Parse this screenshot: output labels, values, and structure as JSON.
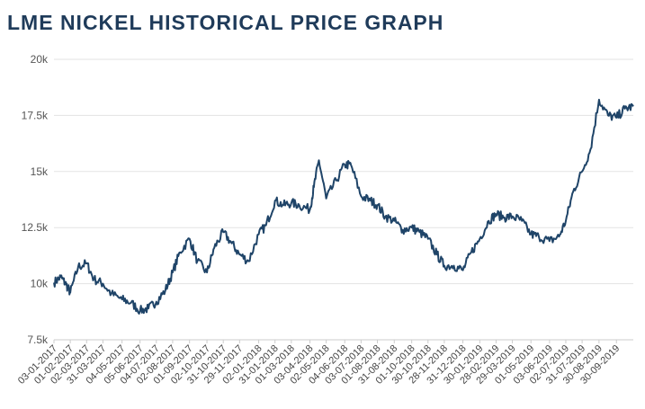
{
  "chart_data": {
    "type": "line",
    "title": "LME NICKEL HISTORICAL PRICE GRAPH",
    "xlabel": "",
    "ylabel": "",
    "ylim": [
      7500,
      20000
    ],
    "xlim": [
      "03-01-2017",
      "30-10-2019"
    ],
    "grid": true,
    "line_color": "#1f4468",
    "y_ticks": [
      {
        "value": 7500,
        "label": "7.5k"
      },
      {
        "value": 10000,
        "label": "10k"
      },
      {
        "value": 12500,
        "label": "12.5k"
      },
      {
        "value": 15000,
        "label": "15k"
      },
      {
        "value": 17500,
        "label": "17.5k"
      },
      {
        "value": 20000,
        "label": "20k"
      }
    ],
    "x_tick_labels": [
      "03-01-2017",
      "01-02-2017",
      "02-03-2017",
      "31-03-2017",
      "04-05-2017",
      "05-06-2017",
      "04-07-2017",
      "02-08-2017",
      "01-09-2017",
      "02-10-2017",
      "31-10-2017",
      "29-11-2017",
      "02-01-2018",
      "31-01-2018",
      "01-03-2018",
      "03-04-2018",
      "02-05-2018",
      "04-06-2018",
      "03-07-2018",
      "01-08-2018",
      "31-08-2018",
      "01-10-2018",
      "30-10-2018",
      "28-11-2018",
      "31-12-2018",
      "30-01-2019",
      "28-02-2019",
      "29-03-2019",
      "01-05-2019",
      "03-06-2019",
      "02-07-2019",
      "31-07-2019",
      "30-08-2019",
      "30-09-2019"
    ],
    "series": [
      {
        "name": "",
        "points": [
          [
            "03-01-2017",
            10050
          ],
          [
            "15-01-2017",
            10300
          ],
          [
            "25-01-2017",
            9950
          ],
          [
            "01-02-2017",
            9600
          ],
          [
            "15-02-2017",
            10750
          ],
          [
            "02-03-2017",
            10900
          ],
          [
            "15-03-2017",
            10200
          ],
          [
            "31-03-2017",
            10000
          ],
          [
            "15-04-2017",
            9550
          ],
          [
            "04-05-2017",
            9300
          ],
          [
            "20-05-2017",
            9150
          ],
          [
            "05-06-2017",
            8800
          ],
          [
            "20-06-2017",
            8900
          ],
          [
            "04-07-2017",
            9200
          ],
          [
            "20-07-2017",
            9700
          ],
          [
            "02-08-2017",
            10500
          ],
          [
            "15-08-2017",
            11400
          ],
          [
            "01-09-2017",
            12000
          ],
          [
            "15-09-2017",
            11000
          ],
          [
            "02-10-2017",
            10500
          ],
          [
            "15-10-2017",
            11600
          ],
          [
            "31-10-2017",
            12300
          ],
          [
            "15-11-2017",
            11800
          ],
          [
            "29-11-2017",
            11300
          ],
          [
            "15-12-2017",
            11000
          ],
          [
            "02-01-2018",
            12200
          ],
          [
            "15-01-2018",
            12600
          ],
          [
            "31-01-2018",
            13700
          ],
          [
            "15-02-2018",
            13500
          ],
          [
            "01-03-2018",
            13600
          ],
          [
            "15-03-2018",
            13500
          ],
          [
            "03-04-2018",
            13300
          ],
          [
            "10-04-2018",
            14300
          ],
          [
            "19-04-2018",
            15500
          ],
          [
            "02-05-2018",
            13800
          ],
          [
            "20-05-2018",
            14600
          ],
          [
            "04-06-2018",
            15300
          ],
          [
            "15-06-2018",
            15300
          ],
          [
            "03-07-2018",
            13900
          ],
          [
            "20-07-2018",
            13700
          ],
          [
            "01-08-2018",
            13500
          ],
          [
            "15-08-2018",
            13000
          ],
          [
            "31-08-2018",
            12800
          ],
          [
            "15-09-2018",
            12400
          ],
          [
            "01-10-2018",
            12500
          ],
          [
            "15-10-2018",
            12300
          ],
          [
            "30-10-2018",
            12000
          ],
          [
            "15-11-2018",
            11300
          ],
          [
            "28-11-2018",
            10800
          ],
          [
            "15-12-2018",
            10800
          ],
          [
            "31-12-2018",
            10600
          ],
          [
            "15-01-2019",
            11400
          ],
          [
            "30-01-2019",
            12000
          ],
          [
            "15-02-2019",
            12800
          ],
          [
            "28-02-2019",
            13100
          ],
          [
            "15-03-2019",
            12950
          ],
          [
            "29-03-2019",
            13000
          ],
          [
            "15-04-2019",
            12800
          ],
          [
            "01-05-2019",
            12200
          ],
          [
            "15-05-2019",
            12100
          ],
          [
            "03-06-2019",
            11900
          ],
          [
            "20-06-2019",
            12100
          ],
          [
            "02-07-2019",
            12800
          ],
          [
            "15-07-2019",
            14100
          ],
          [
            "31-07-2019",
            15000
          ],
          [
            "15-08-2019",
            16000
          ],
          [
            "30-08-2019",
            18200
          ],
          [
            "15-09-2019",
            17500
          ],
          [
            "30-09-2019",
            17400
          ],
          [
            "15-10-2019",
            17800
          ],
          [
            "30-10-2019",
            17900
          ]
        ]
      }
    ]
  }
}
